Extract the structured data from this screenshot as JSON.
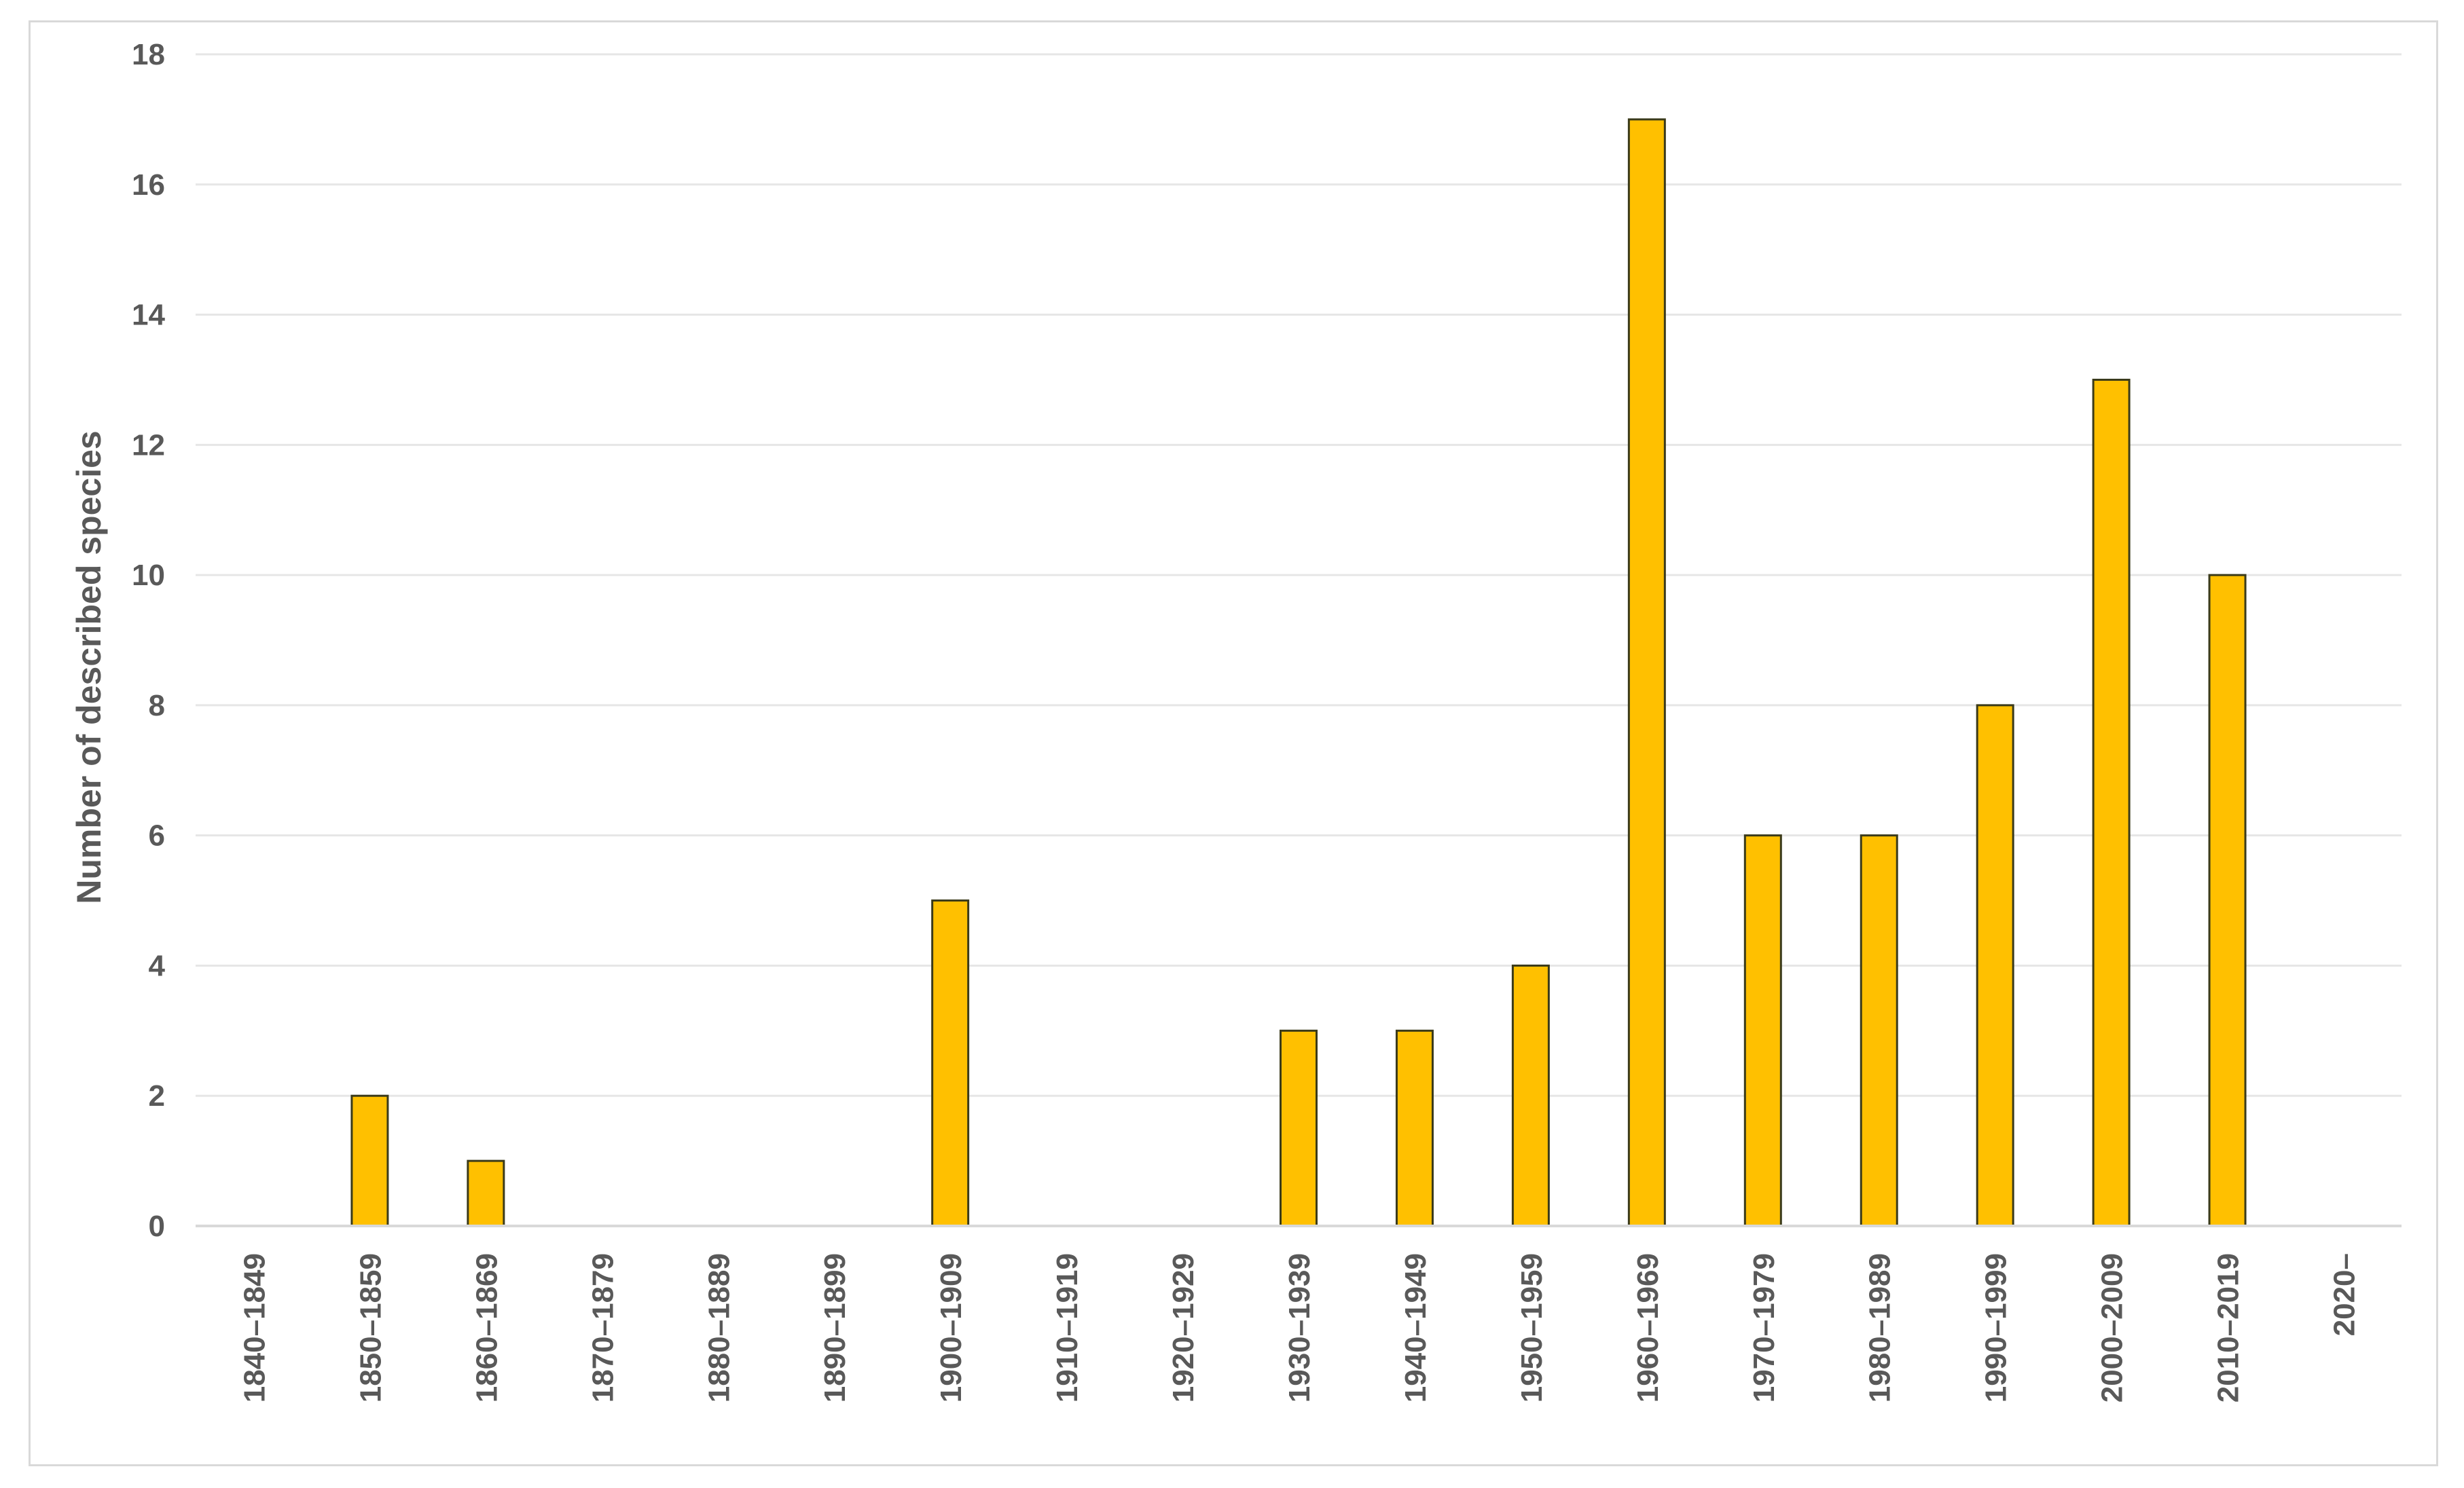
{
  "chart_data": {
    "type": "bar",
    "title": "",
    "xlabel": "",
    "ylabel": "Number of described species",
    "categories": [
      "1840–1849",
      "1850–1859",
      "1860–1869",
      "1870–1879",
      "1880–1889",
      "1890–1899",
      "1900–1909",
      "1910–1919",
      "1920–1929",
      "1930–1939",
      "1940–1949",
      "1950–1959",
      "1960–1969",
      "1970–1979",
      "1980–1989",
      "1990–1999",
      "2000–2009",
      "2010–2019",
      "2020–"
    ],
    "values": [
      0,
      2,
      1,
      0,
      0,
      0,
      5,
      0,
      0,
      3,
      3,
      4,
      17,
      6,
      6,
      8,
      13,
      10,
      0
    ],
    "ylim": [
      0,
      18
    ],
    "yticks": [
      "0",
      "2",
      "4",
      "6",
      "8",
      "10",
      "12",
      "14",
      "16",
      "18"
    ],
    "grid": true,
    "legend": "none",
    "colors": {
      "bar_fill": "#FFC000",
      "bar_stroke": "#3a3a1a",
      "grid": "#e6e6e6",
      "axis": "#d9d9d9",
      "text": "#595959"
    }
  }
}
